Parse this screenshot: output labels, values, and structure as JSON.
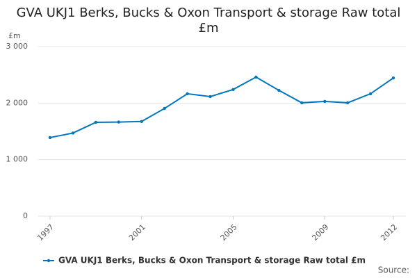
{
  "chart_data": {
    "type": "line",
    "title": "GVA UKJ1 Berks, Bucks & Oxon Transport & storage Raw total £m",
    "y_axis_label": "£m",
    "source": "Source:",
    "x": [
      1997,
      1998,
      1999,
      2000,
      2001,
      2002,
      2003,
      2004,
      2005,
      2006,
      2007,
      2008,
      2009,
      2010,
      2011,
      2012
    ],
    "series": [
      {
        "name": "GVA UKJ1 Berks, Bucks & Oxon Transport & storage Raw total £m",
        "color": "#0077bc",
        "values": [
          1390,
          1470,
          1660,
          1665,
          1675,
          1905,
          2165,
          2115,
          2240,
          2460,
          2225,
          2005,
          2030,
          2005,
          2165,
          2445
        ]
      }
    ],
    "xlim": [
      1997,
      2012
    ],
    "xticks": [
      1997,
      2001,
      2005,
      2009,
      2012
    ],
    "ylim": [
      0,
      3000
    ],
    "yticks": [
      0,
      {
        "value": 1000,
        "label": "1 000"
      },
      {
        "value": 2000,
        "label": "2 000"
      },
      {
        "value": 3000,
        "label": "3 000"
      }
    ],
    "grid": true
  }
}
